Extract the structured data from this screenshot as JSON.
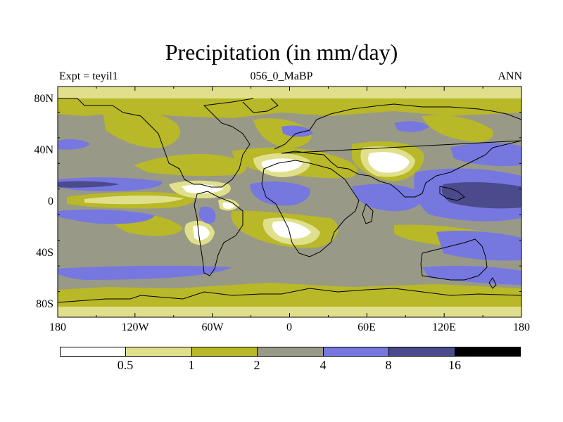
{
  "title": "Precipitation (in mm/day)",
  "subtitle_left": "Expt = teyil1",
  "subtitle_center": "056_0_MaBP",
  "subtitle_right": "ANN",
  "lat_labels": [
    "80N",
    "40N",
    "0",
    "40S",
    "80S"
  ],
  "lon_labels": [
    "180",
    "120W",
    "60W",
    "0",
    "60E",
    "120E",
    "180"
  ],
  "colorbar": {
    "levels": [
      "0.5",
      "1",
      "2",
      "4",
      "8",
      "16"
    ],
    "colors": [
      "#ffffff",
      "#e0e08c",
      "#b8b828",
      "#999988",
      "#7777e0",
      "#4a4a8c",
      "#000000"
    ]
  },
  "map_colors": {
    "ocean_base": "#999988",
    "low": "#b8b828",
    "very_low": "#e0e08c",
    "dry": "#ffffff",
    "wet": "#7777e0",
    "very_wet": "#4a4a8c",
    "coast": "#000000"
  }
}
